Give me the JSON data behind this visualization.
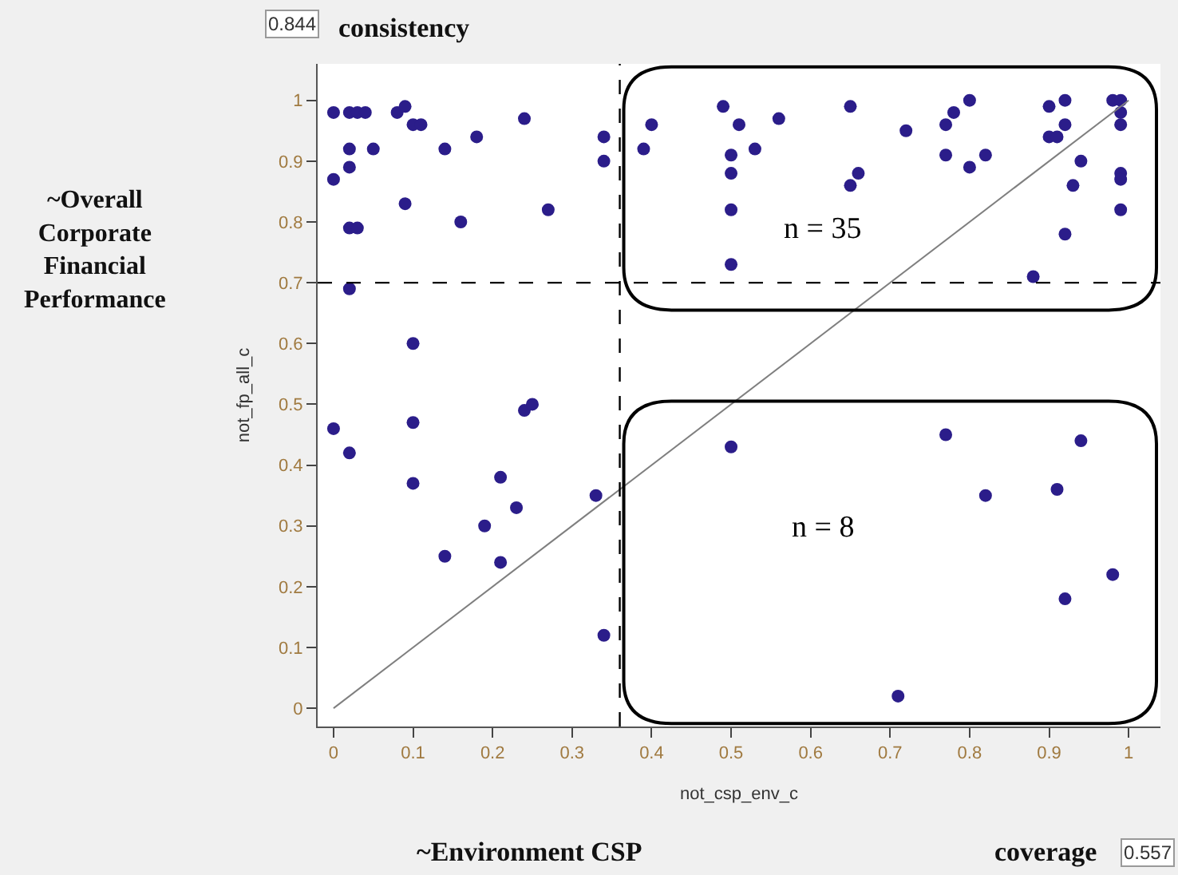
{
  "chart_data": {
    "type": "scatter",
    "xlabel": "not_csp_env_c",
    "ylabel": "not_fp_all_c",
    "xlim": [
      -0.02,
      1.04
    ],
    "ylim": [
      -0.03,
      1.06
    ],
    "xticks": [
      0,
      0.1,
      0.2,
      0.3,
      0.4,
      0.5,
      0.6,
      0.7,
      0.8,
      0.9,
      1
    ],
    "yticks": [
      0,
      0.1,
      0.2,
      0.3,
      0.4,
      0.5,
      0.6,
      0.7,
      0.8,
      0.9,
      1
    ],
    "marker": "circle",
    "series": [
      {
        "color": "#2b1d8a",
        "x": [
          0.0,
          0.02,
          0.03,
          0.04,
          0.02,
          0.05,
          0.02,
          0.0,
          0.02,
          0.03,
          0.02,
          0.08,
          0.09,
          0.1,
          0.11,
          0.09,
          0.14,
          0.18,
          0.16,
          0.24,
          0.27,
          0.34,
          0.34,
          0.1,
          0.0,
          0.02,
          0.1,
          0.1,
          0.14,
          0.19,
          0.21,
          0.21,
          0.23,
          0.24,
          0.25,
          0.33,
          0.34,
          0.39,
          0.4,
          0.49,
          0.51,
          0.56,
          0.5,
          0.53,
          0.5,
          0.5,
          0.5,
          0.65,
          0.66,
          0.65,
          0.72,
          0.77,
          0.78,
          0.8,
          0.77,
          0.8,
          0.82,
          0.9,
          0.92,
          0.92,
          0.9,
          0.91,
          0.94,
          0.93,
          0.92,
          0.88,
          0.98,
          0.99,
          0.99,
          0.99,
          0.99,
          0.99,
          0.99,
          0.5,
          0.77,
          0.94,
          0.82,
          0.91,
          0.98,
          0.92,
          0.71
        ],
        "values": [
          0.98,
          0.98,
          0.98,
          0.98,
          0.92,
          0.92,
          0.89,
          0.87,
          0.79,
          0.79,
          0.69,
          0.98,
          0.99,
          0.96,
          0.96,
          0.83,
          0.92,
          0.94,
          0.8,
          0.97,
          0.82,
          0.94,
          0.9,
          0.6,
          0.46,
          0.42,
          0.47,
          0.37,
          0.25,
          0.3,
          0.38,
          0.24,
          0.33,
          0.49,
          0.5,
          0.35,
          0.12,
          0.92,
          0.96,
          0.99,
          0.96,
          0.97,
          0.91,
          0.92,
          0.88,
          0.82,
          0.73,
          0.99,
          0.88,
          0.86,
          0.95,
          0.96,
          0.98,
          1.0,
          0.91,
          0.89,
          0.91,
          0.99,
          1.0,
          0.96,
          0.94,
          0.94,
          0.9,
          0.86,
          0.78,
          0.71,
          1.0,
          1.0,
          0.98,
          0.96,
          0.88,
          0.87,
          0.82,
          0.43,
          0.45,
          0.44,
          0.35,
          0.36,
          0.22,
          0.18,
          0.02
        ]
      },
      {
        "type": "line",
        "color": "#7f7f7f",
        "x": [
          0,
          1
        ],
        "values": [
          0,
          1
        ],
        "marker": "none"
      }
    ],
    "ref_lines": [
      {
        "axis": "x",
        "value": 0.36,
        "line_style": "dashed",
        "color": "#000000"
      },
      {
        "axis": "y",
        "value": 0.7,
        "line_style": "dashed",
        "color": "#000000"
      }
    ],
    "annotations": [
      "n = 35",
      "n = 8",
      "consistency",
      "0.844",
      "coverage",
      "0.557",
      "~Overall Corporate Financial Performance",
      "~Environment CSP"
    ]
  }
}
